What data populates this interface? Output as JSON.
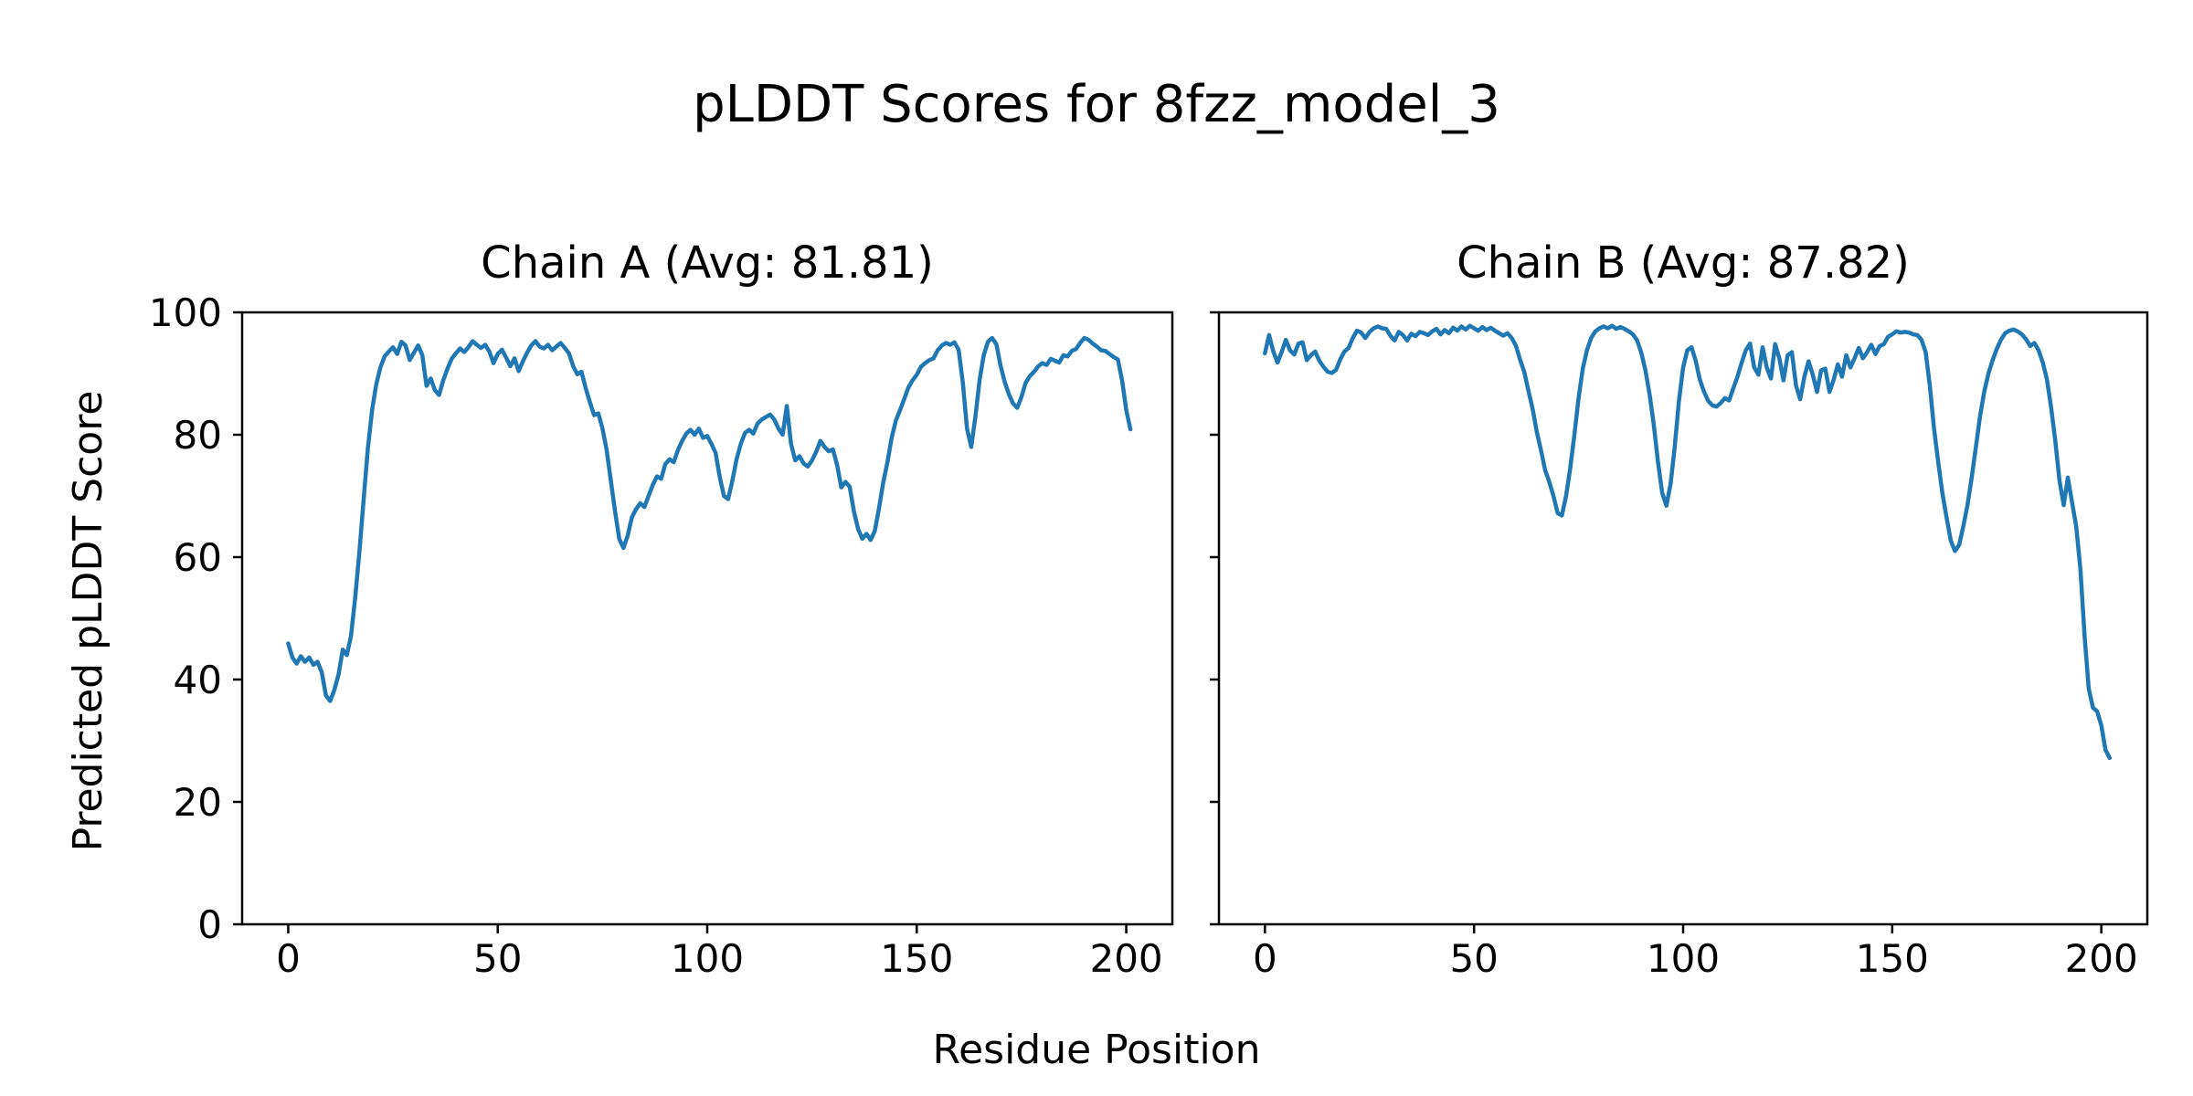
{
  "figure": {
    "suptitle": "pLDDT Scores for 8fzz_model_3",
    "xlabel": "Residue Position",
    "ylabel": "Predicted pLDDT Score"
  },
  "chart_data": [
    {
      "type": "line",
      "title": "Chain A (Avg: 81.81)",
      "chain": "A",
      "avg_plddt": 81.81,
      "x_start": 0,
      "x_step": 1,
      "x_ticks": [
        0,
        50,
        100,
        150,
        200
      ],
      "y_ticks": [
        0,
        20,
        40,
        60,
        80,
        100
      ],
      "ylim": [
        0,
        100
      ],
      "xlim": [
        -11,
        211
      ],
      "grid": false,
      "legend": "none",
      "line_color": "#1f77b4",
      "show_y_tick_labels": true,
      "values": [
        45.9,
        43.6,
        42.6,
        43.8,
        42.9,
        43.6,
        42.4,
        42.9,
        41.2,
        37.4,
        36.5,
        38.3,
        40.8,
        44.9,
        44.0,
        47.2,
        53.5,
        61.0,
        69.5,
        77.8,
        84.0,
        88.2,
        91.0,
        92.8,
        93.6,
        94.3,
        93.2,
        95.2,
        94.6,
        92.2,
        93.4,
        94.6,
        93.0,
        88.0,
        89.2,
        87.3,
        86.5,
        88.9,
        90.8,
        92.4,
        93.3,
        94.1,
        93.5,
        94.3,
        95.3,
        94.7,
        94.2,
        94.7,
        93.6,
        91.7,
        93.2,
        93.9,
        92.6,
        91.2,
        92.5,
        90.4,
        92.0,
        93.4,
        94.6,
        95.3,
        94.4,
        94.1,
        94.7,
        93.8,
        94.4,
        95.0,
        94.2,
        93.3,
        91.2,
        89.9,
        90.3,
        87.6,
        85.3,
        83.2,
        83.5,
        81.0,
        77.5,
        72.5,
        67.5,
        63.0,
        61.5,
        63.5,
        66.5,
        67.8,
        68.8,
        68.2,
        70.0,
        71.8,
        73.2,
        72.8,
        75.2,
        76.0,
        75.5,
        77.5,
        79.0,
        80.2,
        80.8,
        80.0,
        81.0,
        79.5,
        79.8,
        78.5,
        77.0,
        73.0,
        70.0,
        69.5,
        72.5,
        76.0,
        78.5,
        80.3,
        80.8,
        80.2,
        81.8,
        82.5,
        82.9,
        83.3,
        82.5,
        81.0,
        80.0,
        84.7,
        78.5,
        75.8,
        76.5,
        75.3,
        74.8,
        75.8,
        77.2,
        79.0,
        78.0,
        77.3,
        77.6,
        75.0,
        71.4,
        72.3,
        71.5,
        67.5,
        64.6,
        63.0,
        63.8,
        62.8,
        64.3,
        68.0,
        72.2,
        75.5,
        79.5,
        82.3,
        84.0,
        85.8,
        87.7,
        88.9,
        89.8,
        91.1,
        91.7,
        92.2,
        92.5,
        93.8,
        94.6,
        95.0,
        94.7,
        95.1,
        93.9,
        88.5,
        81.0,
        78.0,
        83.0,
        89.0,
        93.0,
        95.2,
        95.8,
        94.8,
        91.3,
        88.6,
        86.6,
        85.1,
        84.4,
        86.2,
        88.5,
        89.6,
        90.3,
        91.2,
        91.7,
        91.4,
        92.4,
        92.1,
        91.8,
        93.0,
        92.8,
        93.7,
        94.0,
        95.0,
        95.8,
        95.5,
        94.9,
        94.4,
        93.8,
        93.7,
        93.2,
        92.7,
        92.3,
        88.9,
        84.0,
        80.9
      ]
    },
    {
      "type": "line",
      "title": "Chain B (Avg: 87.82)",
      "chain": "B",
      "avg_plddt": 87.82,
      "x_start": 0,
      "x_step": 1,
      "x_ticks": [
        0,
        50,
        100,
        150,
        200
      ],
      "y_ticks": [
        0,
        20,
        40,
        60,
        80,
        100
      ],
      "ylim": [
        0,
        100
      ],
      "xlim": [
        -11,
        211
      ],
      "grid": false,
      "legend": "none",
      "line_color": "#1f77b4",
      "show_y_tick_labels": false,
      "values": [
        93.3,
        96.3,
        93.6,
        91.8,
        93.5,
        95.5,
        93.8,
        93.1,
        94.9,
        95.1,
        92.2,
        93.0,
        93.6,
        92.1,
        91.1,
        90.3,
        90.1,
        90.6,
        92.3,
        93.6,
        94.2,
        95.8,
        97.0,
        96.7,
        95.8,
        96.8,
        97.4,
        97.7,
        97.4,
        97.3,
        96.2,
        95.4,
        96.8,
        96.3,
        95.4,
        96.5,
        96.1,
        96.8,
        96.6,
        96.3,
        96.9,
        97.3,
        96.4,
        97.1,
        96.6,
        97.5,
        97.0,
        97.7,
        97.2,
        97.8,
        97.4,
        97.0,
        97.6,
        97.1,
        97.5,
        97.0,
        96.6,
        96.2,
        96.6,
        95.8,
        94.6,
        92.3,
        90.3,
        87.2,
        84.3,
        80.5,
        77.5,
        74.2,
        72.3,
        70.0,
        67.2,
        66.8,
        70.0,
        74.5,
        80.0,
        86.0,
        90.8,
        93.8,
        95.8,
        96.9,
        97.4,
        97.7,
        97.4,
        97.8,
        97.3,
        97.6,
        97.3,
        96.9,
        96.4,
        95.4,
        93.4,
        90.5,
        86.5,
        81.5,
        75.5,
        70.5,
        68.4,
        72.0,
        78.0,
        85.5,
        91.0,
        93.8,
        94.3,
        92.1,
        89.0,
        87.0,
        85.5,
        84.8,
        84.6,
        85.2,
        86.0,
        85.6,
        87.6,
        89.5,
        91.8,
        93.8,
        94.9,
        91.0,
        89.8,
        94.3,
        91.0,
        89.2,
        94.8,
        92.5,
        88.9,
        93.0,
        93.5,
        88.0,
        85.8,
        89.5,
        92.0,
        89.8,
        87.0,
        90.5,
        90.8,
        87.0,
        89.0,
        91.5,
        89.5,
        93.0,
        91.0,
        92.5,
        94.2,
        92.5,
        93.5,
        94.7,
        93.2,
        94.5,
        94.8,
        96.0,
        96.4,
        96.9,
        96.7,
        96.8,
        96.7,
        96.4,
        96.3,
        95.5,
        93.5,
        88.0,
        81.0,
        75.5,
        70.5,
        66.5,
        62.7,
        61.0,
        62.0,
        65.0,
        68.5,
        73.0,
        78.0,
        83.0,
        87.0,
        90.0,
        92.2,
        94.0,
        95.5,
        96.6,
        97.0,
        97.2,
        96.9,
        96.4,
        95.6,
        94.5,
        95.0,
        93.8,
        91.8,
        89.0,
        84.5,
        79.0,
        72.5,
        68.5,
        73.0,
        69.0,
        65.0,
        58.0,
        47.0,
        38.5,
        35.4,
        34.8,
        32.5,
        28.5,
        27.2
      ]
    }
  ]
}
